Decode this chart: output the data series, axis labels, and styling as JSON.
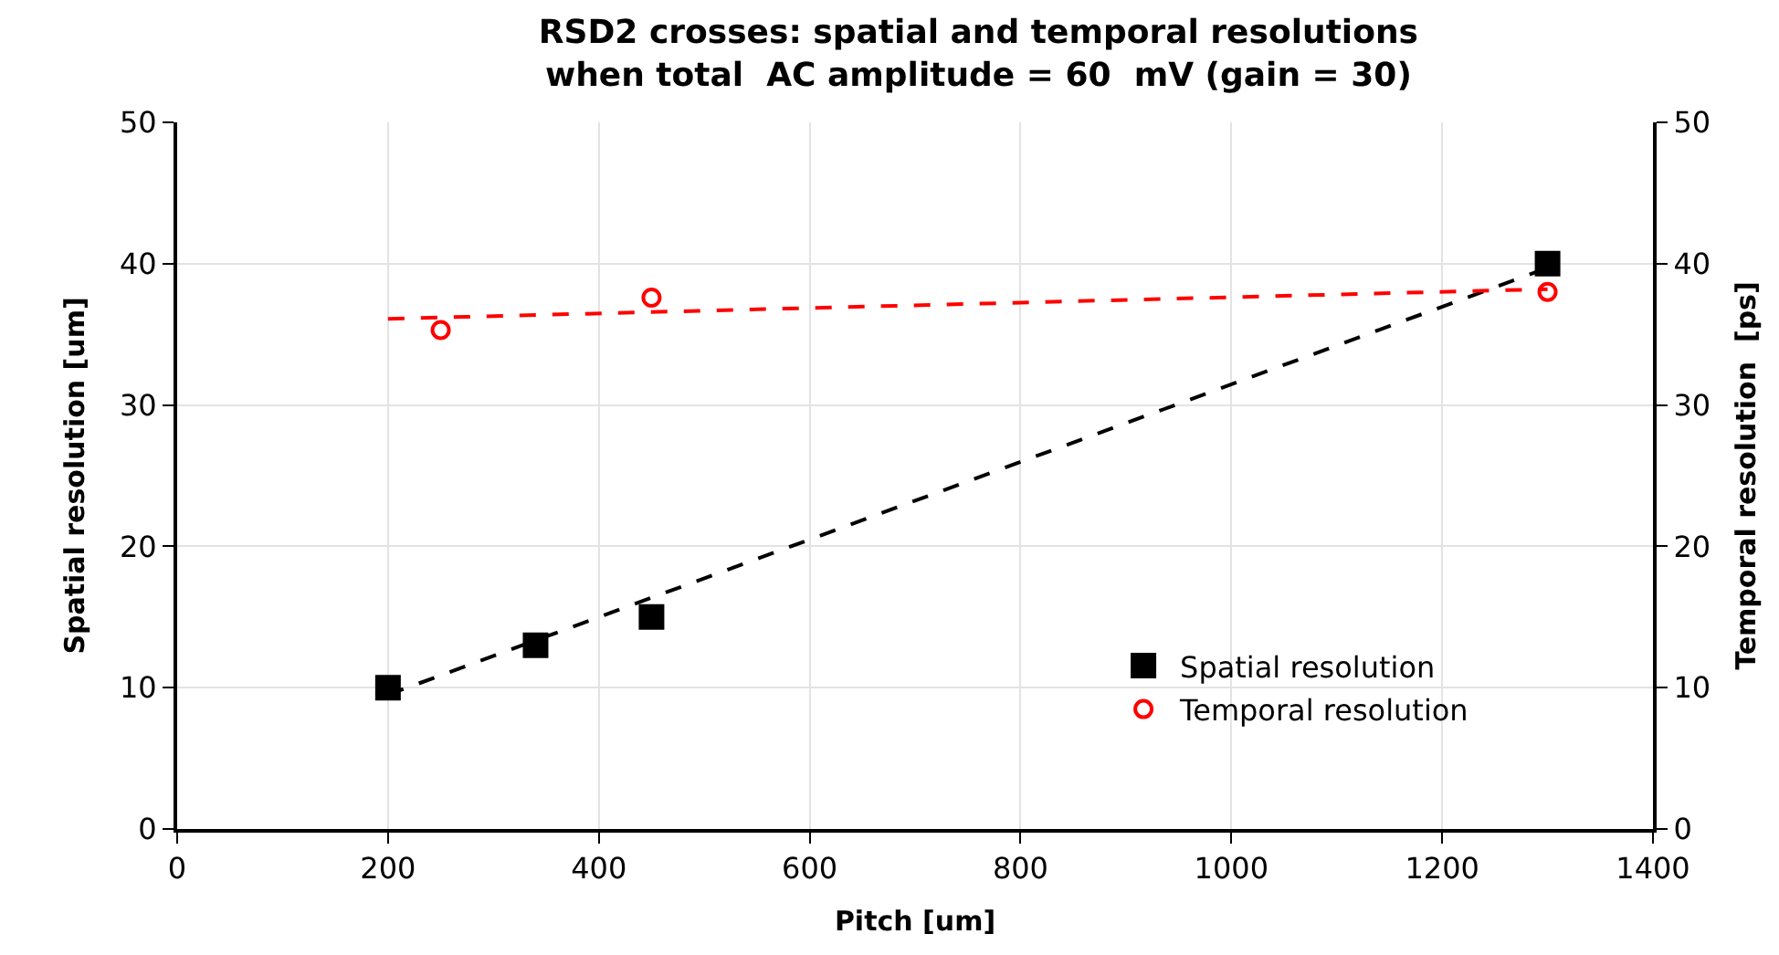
{
  "chart_data": {
    "type": "scatter",
    "title": "RSD2 crosses: spatial and temporal resolutions\nwhen total  AC amplitude = 60  mV (gain = 30)",
    "xlabel": "Pitch [um]",
    "ylabel": "Spatial resolution [um]",
    "y2label": "Temporal resolution  [ps]",
    "xlim": [
      0,
      1400
    ],
    "xticks": [
      0,
      200,
      400,
      600,
      800,
      1000,
      1200,
      1400
    ],
    "ylim": [
      0,
      50
    ],
    "yticks": [
      0,
      10,
      20,
      30,
      40,
      50
    ],
    "y2lim": [
      0,
      50
    ],
    "y2ticks": [
      0,
      10,
      20,
      30,
      40,
      50
    ],
    "grid": true,
    "legend": "right",
    "series": [
      {
        "name": "Spatial resolution",
        "marker": "square",
        "color": "#000000",
        "x": [
          200,
          340,
          450,
          1300
        ],
        "values": [
          10,
          13,
          15,
          40
        ]
      },
      {
        "name": "Temporal resolution",
        "marker": "circle",
        "color": "#ff0000",
        "axis": "y2",
        "x": [
          250,
          450,
          1300
        ],
        "values": [
          35.3,
          37.6,
          38
        ]
      },
      {
        "type": "line",
        "line_style": "dashed",
        "color": "#000000",
        "x": [
          200,
          1300
        ],
        "values": [
          9.5,
          39.7
        ]
      },
      {
        "type": "line",
        "line_style": "dashed",
        "color": "#ff0000",
        "axis": "y2",
        "x": [
          200,
          1300
        ],
        "values": [
          36.1,
          38.2
        ]
      }
    ]
  }
}
